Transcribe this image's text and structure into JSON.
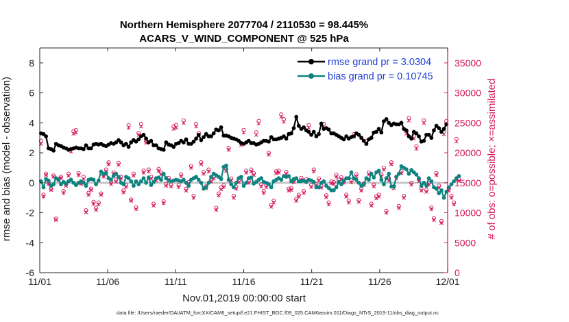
{
  "chart_data": {
    "type": "line",
    "title": "Northern Hemisphere 2077704 / 2110530 = 98.445%",
    "subtitle": "ACARS_V_WIND_COMPONENT @ 525 hPa",
    "xlabel": "Nov.01,2019 00:00:00 start",
    "ylabel": "rmse and bias (model - observation)",
    "y2label": "# of obs: o=possible; ×=assimilated",
    "footnote": "data file: /Users/raeder/DAI/ATM_forcXX/CAM6_setup/f.e21.FHIST_BGC.f09_025.CAM6assim.011/Diags_NTrS_2019-11/obs_diag_output.nc",
    "x_ticks": [
      "11/01",
      "11/06",
      "11/11",
      "11/16",
      "11/21",
      "11/26",
      "12/01"
    ],
    "x_tick_days": [
      0,
      5,
      10,
      15,
      20,
      25,
      30
    ],
    "xlim": [
      0,
      30
    ],
    "ylim": [
      -6,
      9
    ],
    "y_ticks": [
      -6,
      -4,
      -2,
      0,
      2,
      4,
      6,
      8
    ],
    "y2lim": [
      0,
      37500
    ],
    "y2_ticks": [
      0,
      5000,
      10000,
      15000,
      20000,
      25000,
      30000,
      35000
    ],
    "legend": [
      "rmse grand pr = 3.0304",
      "bias grand pr = 0.10745"
    ],
    "colors": {
      "rmse": "#000000",
      "bias": "#0e8380",
      "obs": "#d4145a",
      "zero_line": "#c0c0c0"
    },
    "series": [
      {
        "name": "rmse",
        "values": [
          3.3,
          3.25,
          3.1,
          2.3,
          2.25,
          2.15,
          2.6,
          2.5,
          2.45,
          2.35,
          2.3,
          2.2,
          2.25,
          2.3,
          2.35,
          2.3,
          2.3,
          2.25,
          2.5,
          2.3,
          2.3,
          2.55,
          2.6,
          2.55,
          2.6,
          2.5,
          2.45,
          2.55,
          2.65,
          2.6,
          2.7,
          2.85,
          2.7,
          2.5,
          2.6,
          2.4,
          2.7,
          2.85,
          2.75,
          2.9,
          3.1,
          3.2,
          2.95,
          2.7,
          2.8,
          2.5,
          2.5,
          2.3,
          2.25,
          2.2,
          2.7,
          2.55,
          2.5,
          2.4,
          2.6,
          2.65,
          2.8,
          2.7,
          2.9,
          2.6,
          2.6,
          2.75,
          2.95,
          3.2,
          2.85,
          3.05,
          3.25,
          3.1,
          3.1,
          3.3,
          3.55,
          3.5,
          3.7,
          3.15,
          3.15,
          3.1,
          3.0,
          2.95,
          2.9,
          2.8,
          2.65,
          2.6,
          2.7,
          2.8,
          2.65,
          2.65,
          2.55,
          2.6,
          2.7,
          2.8,
          2.8,
          2.75,
          3.05,
          2.9,
          2.9,
          2.95,
          3.0,
          3.1,
          2.95,
          3.25,
          3.3,
          3.65,
          4.4,
          3.8,
          3.6,
          3.7,
          3.5,
          3.4,
          3.2,
          3.4,
          3.1,
          3.25,
          3.95,
          3.6,
          3.65,
          3.55,
          3.3,
          3.3,
          3.2,
          3.1,
          3.0,
          2.9,
          3.1,
          2.95,
          3.05,
          3.1,
          3.3,
          3.2,
          3.0,
          2.8,
          2.6,
          2.9,
          3.0,
          3.35,
          3.4,
          3.6,
          3.35,
          4.1,
          4.25,
          4.0,
          3.85,
          3.95,
          3.9,
          3.9,
          4.0,
          3.6,
          3.5,
          3.1,
          2.95,
          3.4,
          3.3,
          3.1,
          2.75,
          2.8,
          3.2,
          3.2,
          3.0,
          3.5,
          3.8,
          3.65,
          3.4,
          3.6,
          3.9
        ]
      },
      {
        "name": "bias",
        "values": [
          0.1,
          -0.3,
          0.25,
          0.15,
          -0.2,
          -0.1,
          0.3,
          0.2,
          -0.1,
          0.05,
          -0.05,
          0.1,
          0.2,
          0.0,
          -0.15,
          0.0,
          0.1,
          0.0,
          -0.2,
          0.2,
          0.25,
          0.2,
          -0.1,
          0.15,
          0.75,
          0.6,
          0.65,
          0.3,
          0.2,
          0.45,
          0.6,
          0.4,
          0.0,
          -0.1,
          0.4,
          0.3,
          0.1,
          -0.2,
          0.1,
          -0.1,
          0.1,
          0.3,
          0.0,
          0.35,
          -0.15,
          0.05,
          0.3,
          0.35,
          0.2,
          0.6,
          0.3,
          0.15,
          0.1,
          0.15,
          0.2,
          0.15,
          0.1,
          0.2,
          0.0,
          -0.2,
          0.2,
          0.3,
          0.4,
          0.2,
          0.0,
          -0.4,
          -0.3,
          0.0,
          0.4,
          0.6,
          0.5,
          0.4,
          0.25,
          1.05,
          1.15,
          0.2,
          -0.1,
          -0.3,
          0.0,
          0.3,
          0.4,
          -0.2,
          0.0,
          0.3,
          0.35,
          -0.05,
          0.05,
          0.2,
          0.3,
          0.05,
          0.0,
          -0.1,
          -0.3,
          0.1,
          0.2,
          0.3,
          0.2,
          0.45,
          0.4,
          0.45,
          0.1,
          0.25,
          0.3,
          0.1,
          0.1,
          0.15,
          0.05,
          0.2,
          0.15,
          0.05,
          -0.3,
          -0.3,
          0.0,
          0.1,
          -0.2,
          -0.35,
          -0.5,
          -0.5,
          -0.3,
          0.05,
          -0.1,
          0.15,
          0.3,
          0.3,
          0.7,
          0.3,
          0.2,
          0.0,
          -0.2,
          -0.1,
          0.3,
          0.2,
          0.6,
          0.35,
          0.7,
          0.8,
          0.2,
          -0.1,
          0.3,
          0.6,
          -0.25,
          -0.25,
          0.4,
          0.6,
          1.1,
          1.0,
          0.9,
          0.6,
          0.85,
          0.7,
          0.55,
          0.3,
          -0.2,
          0.0,
          -0.2,
          0.3,
          0.1,
          -0.3,
          -0.4,
          -0.7,
          -0.5,
          -1.0,
          -0.6,
          -0.3,
          -0.1,
          0.1,
          0.3,
          0.45
        ]
      },
      {
        "name": "obs_possible",
        "values": [
          22000,
          13000,
          16500,
          15000,
          14000,
          16200,
          9000,
          15600,
          16000,
          13600,
          14700,
          16500,
          20600,
          23600,
          23800,
          16600,
          15100,
          16000,
          10400,
          13300,
          14000,
          11800,
          10800,
          11700,
          13200,
          16300,
          17200,
          18400,
          15100,
          16700,
          15500,
          18300,
          16000,
          13700,
          14600,
          24600,
          12200,
          16500,
          10900,
          23300,
          24800,
          17000,
          22000,
          17200,
          16000,
          11500,
          15700,
          17300,
          16700,
          11900,
          14800,
          15800,
          14700,
          24400,
          24600,
          14600,
          16400,
          25400,
          14000,
          15100,
          17800,
          12800,
          24800,
          23300,
          18400,
          16800,
          14400,
          17200,
          15500,
          16000,
          10800,
          13200,
          14200,
          14600,
          17300,
          20800,
          15700,
          12800,
          14300,
          15400,
          21600,
          23800,
          17000,
          15300,
          17200,
          16600,
          23400,
          25300,
          14700,
          13600,
          14600,
          20000,
          11300,
          12000,
          16900,
          17000,
          26400,
          25600,
          16800,
          14000,
          14100,
          15400,
          12300,
          13000,
          15800,
          13600,
          15600,
          24600,
          14600,
          17200,
          14800,
          15700,
          14500,
          24800,
          12900,
          11700,
          15200,
          15100,
          16300,
          15500,
          15900,
          15300,
          13000,
          12000,
          15400,
          23100,
          16400,
          12100,
          14000,
          14900,
          21900,
          16700,
          11500,
          14700,
          12700,
          13000,
          16400,
          17500,
          10300,
          15700,
          18400,
          14400,
          16000,
          11100,
          16900,
          12800,
          23600,
          25800,
          15000,
          22800,
          21100,
          15600,
          14000,
          25400,
          13800,
          15000,
          10900,
          9100,
          16600,
          14500,
          8600,
          23500,
          25300,
          14000,
          12800,
          11700,
          22300,
          15600
        ]
      },
      {
        "name": "obs_assimilated",
        "values": [
          21500,
          12700,
          16300,
          14800,
          13800,
          16000,
          8800,
          15500,
          15800,
          13300,
          14500,
          16200,
          20200,
          23200,
          23400,
          16300,
          14800,
          15600,
          10100,
          13000,
          13800,
          11500,
          10500,
          11400,
          13000,
          16000,
          16900,
          18100,
          14800,
          16500,
          15200,
          18000,
          15700,
          13400,
          14300,
          24200,
          12000,
          16200,
          10600,
          23000,
          24400,
          16700,
          21700,
          16900,
          15700,
          11200,
          15400,
          17000,
          16400,
          11600,
          14500,
          15500,
          14400,
          24000,
          24200,
          14300,
          16100,
          25000,
          13700,
          14800,
          17500,
          12500,
          24400,
          22900,
          18100,
          16500,
          14100,
          16900,
          15200,
          15700,
          10500,
          12900,
          13900,
          14300,
          17000,
          20500,
          15400,
          12500,
          14000,
          15100,
          21300,
          23400,
          16700,
          15000,
          16900,
          16300,
          23000,
          24900,
          14400,
          13300,
          14300,
          19700,
          11000,
          11700,
          16600,
          16700,
          26000,
          25200,
          16500,
          13700,
          13800,
          15100,
          12000,
          12700,
          15500,
          13300,
          15300,
          24200,
          14300,
          16900,
          14500,
          15400,
          14200,
          24400,
          12600,
          11400,
          14900,
          14800,
          16000,
          15200,
          15600,
          15000,
          12700,
          11700,
          15100,
          22700,
          16100,
          11800,
          13700,
          14600,
          21500,
          16400,
          11200,
          14400,
          12400,
          12700,
          16100,
          17200,
          10000,
          15400,
          18100,
          14100,
          15700,
          10800,
          16600,
          12500,
          23200,
          25400,
          14700,
          22400,
          20700,
          15300,
          13700,
          25000,
          13500,
          14700,
          10600,
          8800,
          16300,
          14200,
          8300,
          23100,
          24900,
          13700,
          12500,
          11400,
          21900,
          15300
        ]
      }
    ]
  }
}
